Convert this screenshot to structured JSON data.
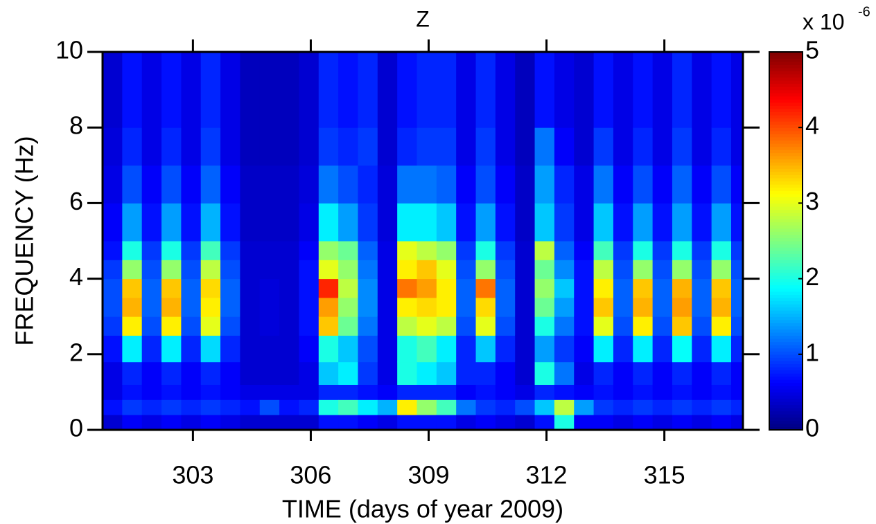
{
  "chart_data": {
    "type": "heatmap",
    "title": "Z",
    "xlabel": "TIME (days of year 2009)",
    "ylabel": "FREQUENCY (Hz)",
    "xlim": [
      300.7,
      317
    ],
    "ylim": [
      0,
      10
    ],
    "xticks": [
      303,
      306,
      309,
      312,
      315
    ],
    "yticks": [
      0,
      2,
      4,
      6,
      8,
      10
    ],
    "x_edges": [
      300.7,
      301.2,
      301.7,
      302.2,
      302.7,
      303.2,
      303.7,
      304.2,
      304.7,
      305.2,
      305.7,
      306.2,
      306.7,
      307.2,
      307.7,
      308.2,
      308.7,
      309.2,
      309.7,
      310.2,
      310.7,
      311.2,
      311.7,
      312.2,
      312.7,
      313.2,
      313.7,
      314.2,
      314.7,
      315.2,
      315.7,
      316.2,
      316.7,
      317
    ],
    "y_edges": [
      0,
      0.4,
      0.8,
      1.2,
      1.8,
      2.5,
      3,
      3.5,
      4,
      4.5,
      5,
      6,
      7,
      8,
      10
    ],
    "colormap": "jet",
    "z": [
      [
        0.4,
        0.7,
        0.5,
        0.5,
        0.7,
        0.9,
        1.0,
        1.0,
        0.9,
        0.7,
        0.6,
        0.5,
        0.45,
        0.4
      ],
      [
        0.6,
        0.9,
        0.7,
        0.8,
        1.8,
        3.2,
        3.5,
        3.4,
        2.6,
        2.0,
        1.4,
        1.0,
        0.8,
        0.7
      ],
      [
        0.5,
        0.8,
        0.6,
        0.6,
        0.8,
        1.0,
        1.1,
        1.1,
        1.0,
        0.9,
        0.7,
        0.6,
        0.5,
        0.5
      ],
      [
        0.6,
        0.9,
        0.7,
        0.8,
        1.8,
        3.2,
        3.5,
        3.4,
        2.6,
        2.0,
        1.4,
        1.0,
        0.8,
        0.7
      ],
      [
        0.5,
        0.8,
        0.6,
        0.6,
        0.8,
        1.0,
        1.1,
        1.1,
        1.0,
        0.9,
        0.7,
        0.6,
        0.5,
        0.5
      ],
      [
        0.6,
        0.9,
        0.7,
        0.8,
        1.7,
        3.0,
        3.2,
        3.3,
        2.8,
        2.2,
        1.5,
        1.1,
        0.9,
        0.8
      ],
      [
        0.5,
        0.8,
        0.6,
        0.6,
        0.8,
        1.0,
        1.1,
        1.1,
        1.0,
        0.9,
        0.7,
        0.6,
        0.5,
        0.5
      ],
      [
        0.4,
        0.7,
        0.5,
        0.4,
        0.4,
        0.4,
        0.4,
        0.4,
        0.4,
        0.4,
        0.35,
        0.35,
        0.3,
        0.3
      ],
      [
        0.4,
        1.0,
        0.5,
        0.4,
        0.4,
        0.45,
        0.45,
        0.45,
        0.4,
        0.4,
        0.35,
        0.35,
        0.3,
        0.3
      ],
      [
        0.4,
        0.7,
        0.5,
        0.4,
        0.4,
        0.4,
        0.4,
        0.4,
        0.4,
        0.4,
        0.35,
        0.35,
        0.3,
        0.3
      ],
      [
        0.4,
        0.8,
        0.5,
        0.5,
        0.6,
        0.7,
        0.7,
        0.7,
        0.7,
        0.6,
        0.5,
        0.45,
        0.4,
        0.4
      ],
      [
        0.7,
        2.0,
        0.8,
        1.6,
        2.0,
        3.4,
        3.6,
        4.2,
        3.0,
        2.6,
        1.8,
        1.2,
        0.9,
        0.8
      ],
      [
        0.7,
        2.2,
        0.8,
        1.8,
        1.6,
        2.4,
        2.6,
        2.8,
        2.6,
        2.4,
        1.4,
        1.0,
        0.8,
        0.7
      ],
      [
        0.6,
        1.8,
        0.7,
        0.9,
        1.0,
        1.2,
        1.3,
        1.3,
        1.2,
        1.1,
        0.9,
        0.8,
        0.9,
        0.8
      ],
      [
        0.5,
        1.5,
        0.6,
        0.5,
        0.5,
        0.5,
        0.5,
        0.5,
        0.5,
        0.5,
        0.45,
        0.45,
        0.4,
        0.4
      ],
      [
        0.7,
        3.2,
        0.8,
        2.0,
        2.0,
        2.8,
        3.2,
        3.8,
        3.2,
        3.0,
        1.8,
        1.2,
        0.8,
        0.7
      ],
      [
        0.7,
        2.6,
        0.8,
        1.8,
        2.2,
        3.0,
        3.3,
        3.6,
        3.4,
        2.8,
        1.8,
        1.2,
        0.9,
        0.8
      ],
      [
        0.7,
        2.2,
        0.8,
        1.6,
        1.8,
        2.8,
        3.2,
        3.2,
        3.0,
        2.6,
        1.6,
        1.1,
        0.9,
        0.8
      ],
      [
        0.5,
        1.2,
        0.6,
        0.8,
        0.8,
        1.0,
        1.1,
        1.1,
        1.0,
        0.9,
        0.7,
        0.6,
        0.5,
        0.5
      ],
      [
        0.6,
        0.9,
        0.7,
        0.8,
        1.6,
        3.0,
        3.3,
        3.8,
        2.6,
        2.0,
        1.4,
        1.0,
        0.9,
        0.8
      ],
      [
        0.5,
        0.8,
        0.6,
        0.6,
        0.8,
        1.0,
        1.1,
        1.1,
        1.0,
        0.9,
        0.7,
        0.6,
        0.5,
        0.5
      ],
      [
        0.4,
        1.0,
        0.5,
        0.4,
        0.4,
        0.4,
        0.4,
        0.4,
        0.4,
        0.4,
        0.35,
        0.35,
        0.3,
        0.3
      ],
      [
        0.7,
        1.6,
        0.8,
        2.0,
        1.4,
        2.0,
        2.4,
        2.6,
        2.4,
        2.8,
        1.6,
        1.4,
        1.2,
        0.7
      ],
      [
        2.0,
        2.8,
        0.7,
        1.2,
        0.9,
        1.2,
        1.4,
        1.6,
        1.3,
        1.1,
        0.9,
        0.8,
        0.6,
        0.5
      ],
      [
        0.6,
        1.4,
        0.6,
        0.5,
        0.6,
        0.7,
        0.7,
        0.7,
        0.7,
        0.6,
        0.5,
        0.5,
        0.4,
        0.4
      ],
      [
        0.6,
        0.9,
        0.7,
        0.8,
        1.8,
        3.0,
        3.4,
        3.2,
        2.8,
        2.2,
        1.6,
        1.2,
        0.9,
        0.7
      ],
      [
        0.5,
        0.8,
        0.6,
        0.6,
        0.8,
        1.0,
        1.1,
        1.1,
        1.0,
        0.9,
        0.7,
        0.6,
        0.5,
        0.5
      ],
      [
        0.6,
        0.9,
        0.7,
        0.8,
        1.8,
        3.2,
        3.5,
        3.4,
        2.6,
        2.0,
        1.4,
        1.0,
        0.8,
        0.7
      ],
      [
        0.5,
        0.8,
        0.6,
        0.6,
        0.8,
        1.0,
        1.1,
        1.1,
        1.0,
        0.9,
        0.7,
        0.6,
        0.5,
        0.5
      ],
      [
        0.6,
        0.9,
        0.7,
        0.8,
        1.9,
        3.4,
        3.6,
        3.5,
        2.6,
        2.0,
        1.4,
        1.1,
        0.9,
        0.8
      ],
      [
        0.5,
        0.8,
        0.6,
        0.6,
        0.8,
        1.0,
        1.1,
        1.1,
        1.0,
        0.9,
        0.7,
        0.6,
        0.5,
        0.5
      ],
      [
        0.6,
        0.9,
        0.7,
        0.8,
        1.8,
        3.2,
        3.5,
        3.4,
        2.6,
        2.0,
        1.4,
        1.0,
        0.8,
        0.7
      ],
      [
        0.5,
        0.8,
        0.6,
        0.6,
        0.8,
        1.0,
        1.1,
        1.1,
        1.0,
        0.9,
        0.7,
        0.6,
        0.5,
        0.5
      ]
    ],
    "colorbar": {
      "lim": [
        0,
        5
      ],
      "ticks": [
        0,
        1,
        2,
        3,
        4,
        5
      ],
      "scale_label": "x 10",
      "scale_exponent": "-6"
    }
  }
}
